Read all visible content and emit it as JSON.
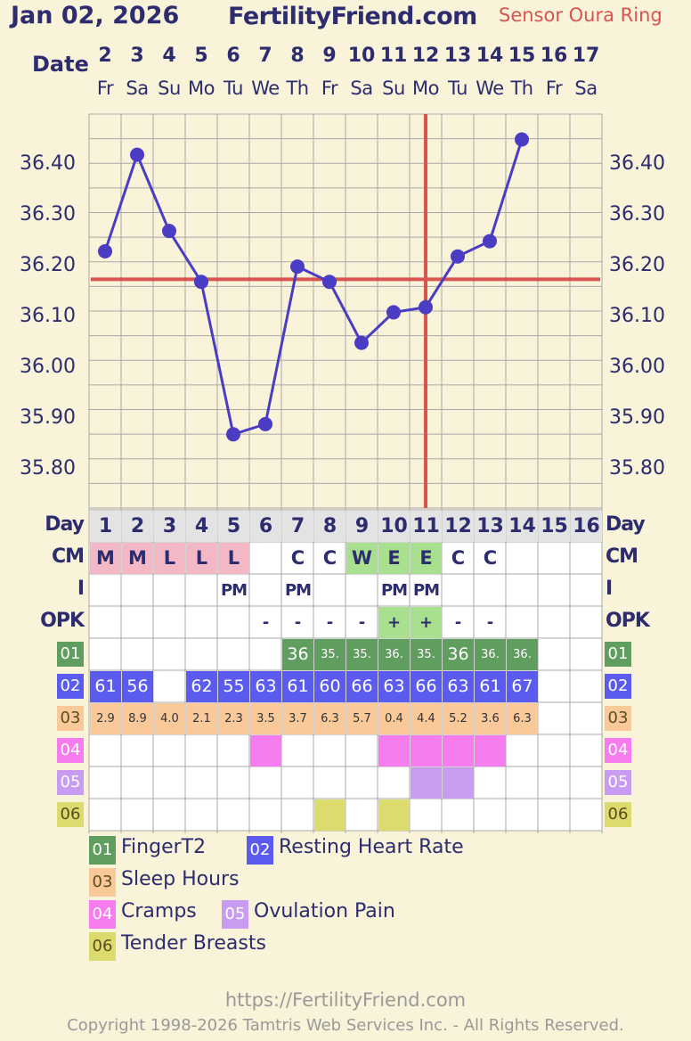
{
  "header": {
    "date": "Jan 02, 2026",
    "site": "FertilityFriend.com",
    "sensor": "Sensor Oura Ring"
  },
  "date_row_label": "Date",
  "dates": [
    {
      "num": "2",
      "dow": "Fr"
    },
    {
      "num": "3",
      "dow": "Sa"
    },
    {
      "num": "4",
      "dow": "Su"
    },
    {
      "num": "5",
      "dow": "Mo"
    },
    {
      "num": "6",
      "dow": "Tu"
    },
    {
      "num": "7",
      "dow": "We"
    },
    {
      "num": "8",
      "dow": "Th"
    },
    {
      "num": "9",
      "dow": "Fr"
    },
    {
      "num": "10",
      "dow": "Sa"
    },
    {
      "num": "11",
      "dow": "Su"
    },
    {
      "num": "12",
      "dow": "Mo"
    },
    {
      "num": "13",
      "dow": "Tu"
    },
    {
      "num": "14",
      "dow": "We"
    },
    {
      "num": "15",
      "dow": "Th"
    },
    {
      "num": "16",
      "dow": "Fr"
    },
    {
      "num": "17",
      "dow": "Sa"
    }
  ],
  "chart_data": {
    "type": "line",
    "title": "",
    "xlabel": "Day",
    "ylabel": "",
    "x": [
      1,
      2,
      3,
      4,
      5,
      6,
      7,
      8,
      9,
      10,
      11,
      12,
      13,
      14,
      15,
      16
    ],
    "series": [
      {
        "name": "",
        "values": [
          36.23,
          36.42,
          36.27,
          36.17,
          35.87,
          35.89,
          36.2,
          36.17,
          36.05,
          36.11,
          36.12,
          36.22,
          36.25,
          36.45,
          null,
          null
        ]
      }
    ],
    "y_ticks": [
      "36.40",
      "36.30",
      "36.20",
      "36.10",
      "36.00",
      "35.90",
      "35.80"
    ],
    "ylim": [
      35.725,
      36.5
    ],
    "coverline": 36.175,
    "ovulation_day": 11,
    "grid": true,
    "colors": {
      "line": "#4b3cc4",
      "coverline": "#d9534f",
      "grid": "#a9a9a9"
    }
  },
  "rows": {
    "day": {
      "label": "Day",
      "values": [
        "1",
        "2",
        "3",
        "4",
        "5",
        "6",
        "7",
        "8",
        "9",
        "10",
        "11",
        "12",
        "13",
        "14",
        "15",
        "16"
      ]
    },
    "cm": {
      "label": "CM",
      "values": [
        "M",
        "M",
        "L",
        "L",
        "L",
        "",
        "C",
        "C",
        "W",
        "E",
        "E",
        "C",
        "C",
        "",
        "",
        ""
      ],
      "colors": [
        "#f2b8c6",
        "#f2b8c6",
        "#f2b8c6",
        "#f2b8c6",
        "#f2b8c6",
        "",
        "",
        "",
        "#a8e090",
        "#a8e090",
        "#a8e090",
        "",
        "",
        "",
        "",
        ""
      ]
    },
    "i": {
      "label": "I",
      "values": [
        "",
        "",
        "",
        "",
        "PM",
        "",
        "PM",
        "",
        "",
        "PM",
        "PM",
        "",
        "",
        "",
        "",
        ""
      ]
    },
    "opk": {
      "label": "OPK",
      "values": [
        "",
        "",
        "",
        "",
        "",
        "-",
        "-",
        "-",
        "-",
        "+",
        "+",
        "-",
        "-",
        "",
        "",
        ""
      ],
      "colors": [
        "",
        "",
        "",
        "",
        "",
        "",
        "",
        "",
        "",
        "#a8e090",
        "#a8e090",
        "",
        "",
        "",
        "",
        ""
      ]
    },
    "r01": {
      "badge": "01",
      "color": "#5f9e5f",
      "values": [
        "",
        "",
        "",
        "",
        "",
        "",
        "36",
        "35.",
        "35.",
        "36.",
        "35.",
        "36",
        "36.",
        "36.",
        "",
        ""
      ]
    },
    "r02": {
      "badge": "02",
      "color": "#5b5bef",
      "values": [
        "61",
        "56",
        "",
        "62",
        "55",
        "63",
        "61",
        "60",
        "66",
        "63",
        "66",
        "63",
        "61",
        "67",
        "",
        ""
      ]
    },
    "r03": {
      "badge": "03",
      "color": "#fac99a",
      "values": [
        "2.9",
        "8.9",
        "4.0",
        "2.1",
        "2.3",
        "3.5",
        "3.7",
        "6.3",
        "5.7",
        "0.4",
        "4.4",
        "5.2",
        "3.6",
        "6.3",
        "",
        ""
      ]
    },
    "r04": {
      "badge": "04",
      "color": "#f77cf0",
      "marks": [
        6,
        10,
        11,
        12,
        13
      ]
    },
    "r05": {
      "badge": "05",
      "color": "#c89cf0",
      "marks": [
        11,
        12
      ]
    },
    "r06": {
      "badge": "06",
      "color": "#dcdc6e",
      "marks": [
        8,
        10
      ]
    }
  },
  "legend": [
    {
      "badge": "01",
      "label": "FingerT2",
      "color": "#5f9e5f"
    },
    {
      "badge": "02",
      "label": "Resting Heart Rate",
      "color": "#5b5bef"
    },
    {
      "badge": "03",
      "label": "Sleep Hours",
      "color": "#fac99a"
    },
    {
      "badge": "04",
      "label": "Cramps",
      "color": "#f77cf0"
    },
    {
      "badge": "05",
      "label": "Ovulation Pain",
      "color": "#c89cf0"
    },
    {
      "badge": "06",
      "label": "Tender Breasts",
      "color": "#dcdc6e"
    }
  ],
  "footer": {
    "url": "https://FertilityFriend.com",
    "copyright": "Copyright 1998-2026 Tamtris Web Services Inc. - All Rights Reserved."
  }
}
